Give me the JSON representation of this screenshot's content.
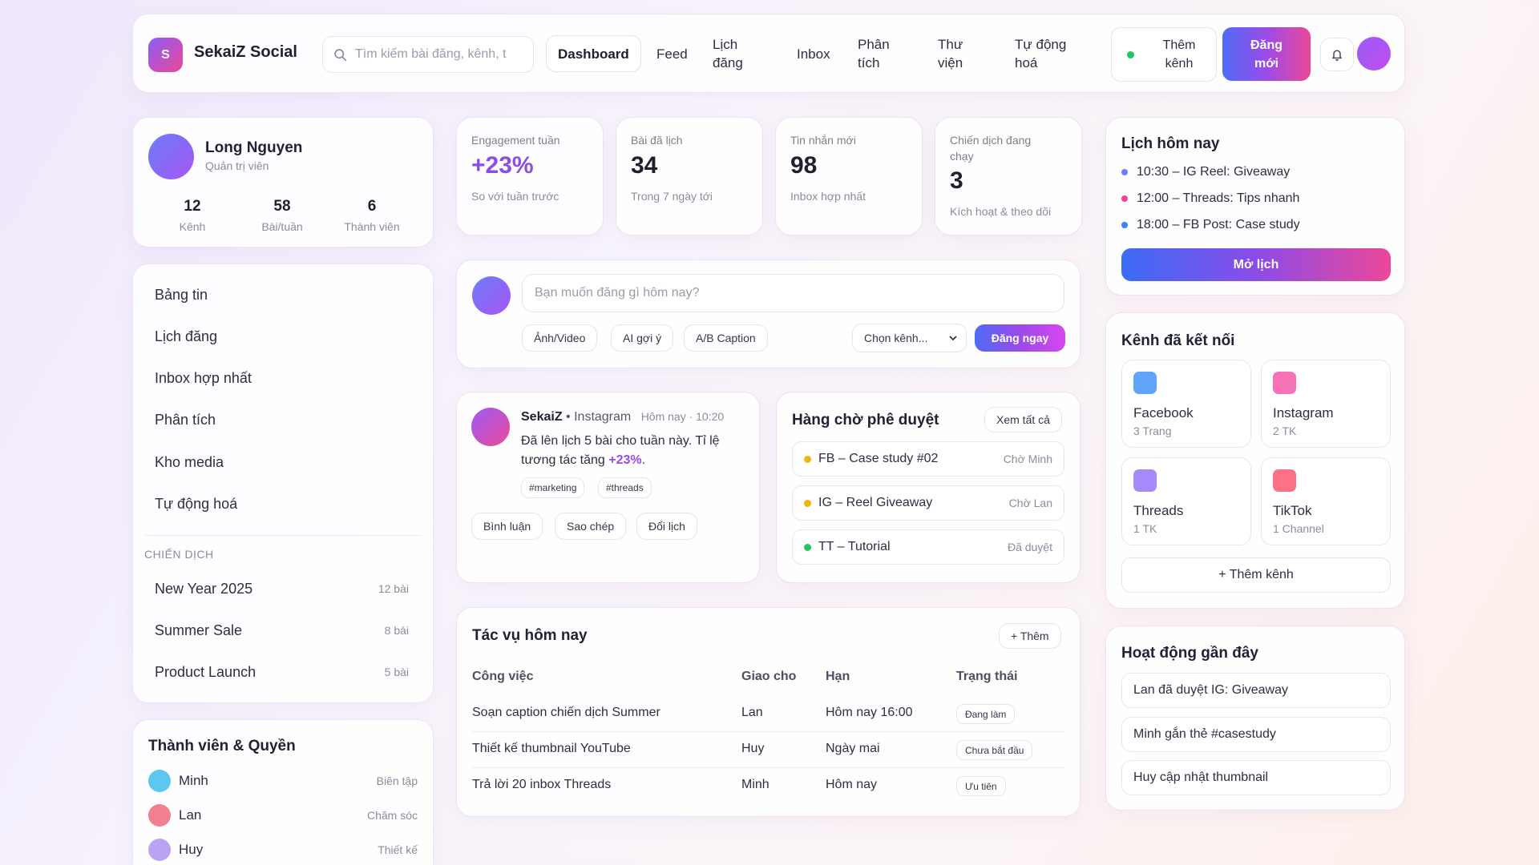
{
  "app": {
    "name": "SekaiZ Social",
    "logo_letter": "S"
  },
  "search": {
    "placeholder": "Tìm kiếm bài đăng, kênh, t"
  },
  "nav": [
    {
      "label": "Dashboard",
      "active": true
    },
    {
      "label": "Feed"
    },
    {
      "label": "Lịch đăng"
    },
    {
      "label": "Inbox"
    },
    {
      "label": "Phân tích"
    },
    {
      "label": "Thư viện"
    },
    {
      "label": "Tự động hoá"
    }
  ],
  "header": {
    "add_channel": "Thêm kênh",
    "new_post": "Đăng mới",
    "bell_icon": "bell-icon"
  },
  "profile": {
    "name": "Long Nguyen",
    "role": "Quản trị viên",
    "stats": [
      {
        "value": "12",
        "label": "Kênh"
      },
      {
        "value": "58",
        "label": "Bài/tuần"
      },
      {
        "value": "6",
        "label": "Thành viên"
      }
    ]
  },
  "sidebar": {
    "items": [
      {
        "label": "Bảng tin"
      },
      {
        "label": "Lịch đăng"
      },
      {
        "label": "Inbox hợp nhất"
      },
      {
        "label": "Phân tích"
      },
      {
        "label": "Kho media"
      },
      {
        "label": "Tự động hoá"
      }
    ],
    "campaign_section": "CHIẾN DỊCH",
    "campaigns": [
      {
        "label": "New Year 2025",
        "count": "12 bài"
      },
      {
        "label": "Summer Sale",
        "count": "8 bài"
      },
      {
        "label": "Product Launch",
        "count": "5 bài"
      }
    ]
  },
  "members": {
    "title": "Thành viên & Quyền",
    "items": [
      {
        "name": "Minh",
        "role": "Biên tập",
        "color": "#5cc8f0"
      },
      {
        "name": "Lan",
        "role": "Chăm sóc",
        "color": "#f47f8f"
      },
      {
        "name": "Huy",
        "role": "Thiết kế",
        "color": "#b9a3f2"
      }
    ]
  },
  "kpis": [
    {
      "label": "Engagement tuần",
      "value": "+23%",
      "sub": "So với tuần trước",
      "accent": "#8b4ce8"
    },
    {
      "label": "Bài đã lịch",
      "value": "34",
      "sub": "Trong 7 ngày tới"
    },
    {
      "label": "Tin nhắn mới",
      "value": "98",
      "sub": "Inbox hợp nhất"
    },
    {
      "label": "Chiến dịch đang chạy",
      "value": "3",
      "sub": "Kích hoạt & theo dõi"
    }
  ],
  "composer": {
    "placeholder": "Bạn muốn đăng gì hôm nay?",
    "options": [
      "Ảnh/Video",
      "AI gợi ý",
      "A/B Caption"
    ],
    "channel_select": "Chọn kênh...",
    "post_now": "Đăng ngay"
  },
  "feed_post": {
    "author": "SekaiZ",
    "network": "• Instagram",
    "time": "Hôm nay · 10:20",
    "text_before": "Đã lên lịch 5 bài cho tuần này. Tỉ lệ tương tác tăng ",
    "highlight": "+23%",
    "text_after": ".",
    "tags": [
      "#marketing",
      "#threads"
    ],
    "actions": [
      "Bình luận",
      "Sao chép",
      "Đổi lịch"
    ]
  },
  "approval": {
    "title": "Hàng chờ phê duyệt",
    "view_all": "Xem tất cả",
    "items": [
      {
        "title": "FB – Case study #02",
        "status": "Chờ Minh",
        "color": "#f5b40a"
      },
      {
        "title": "IG – Reel Giveaway",
        "status": "Chờ Lan",
        "color": "#f5b40a"
      },
      {
        "title": "TT – Tutorial",
        "status": "Đã duyệt",
        "color": "#22c55e"
      }
    ]
  },
  "tasks": {
    "title": "Tác vụ hôm nay",
    "add": "+ Thêm",
    "columns": [
      "Công việc",
      "Giao cho",
      "Hạn",
      "Trạng thái"
    ],
    "rows": [
      {
        "task": "Soạn caption chiến dịch Summer",
        "assignee": "Lan",
        "due": "Hôm nay 16:00",
        "status": "Đang làm"
      },
      {
        "task": "Thiết kế thumbnail YouTube",
        "assignee": "Huy",
        "due": "Ngày mai",
        "status": "Chưa bắt đầu"
      },
      {
        "task": "Trả lời 20 inbox Threads",
        "assignee": "Minh",
        "due": "Hôm nay",
        "status": "Ưu tiên"
      }
    ]
  },
  "schedule": {
    "title": "Lịch hôm nay",
    "items": [
      {
        "text": "10:30 – IG Reel: Giveaway",
        "color": "#6b7df8"
      },
      {
        "text": "12:00 – Threads: Tips nhanh",
        "color": "#ec4899"
      },
      {
        "text": "18:00 – FB Post: Case study",
        "color": "#3b82f6"
      }
    ],
    "open": "Mở lịch"
  },
  "channels": {
    "title": "Kênh đã kết nối",
    "items": [
      {
        "name": "Facebook",
        "sub": "3 Trang",
        "color": "#60a5fa"
      },
      {
        "name": "Instagram",
        "sub": "2 TK",
        "color": "#f472b6"
      },
      {
        "name": "Threads",
        "sub": "1 TK",
        "color": "#a78bfa"
      },
      {
        "name": "TikTok",
        "sub": "1 Channel",
        "color": "#fb7185"
      }
    ],
    "add": "+ Thêm kênh"
  },
  "activity": {
    "title": "Hoạt động gần đây",
    "items": [
      "Lan đã duyệt IG: Giveaway",
      "Minh gắn thẻ #casestudy",
      "Huy cập nhật thumbnail"
    ]
  }
}
